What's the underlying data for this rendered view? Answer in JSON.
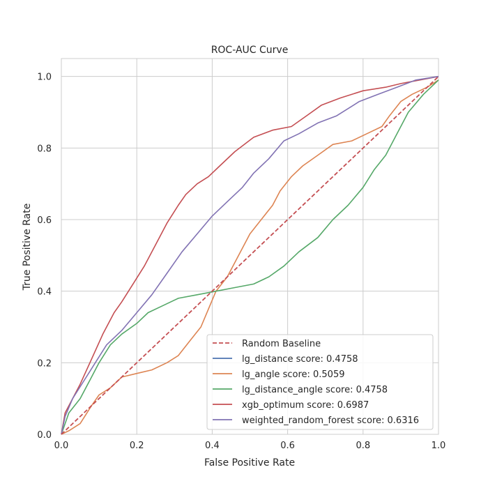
{
  "chart_data": {
    "type": "line",
    "title": "ROC-AUC Curve",
    "xlabel": "False Positive Rate",
    "ylabel": "True Positive Rate",
    "xlim": [
      0,
      1.0
    ],
    "ylim": [
      0,
      1.05
    ],
    "xticks": [
      "0.0",
      "0.2",
      "0.4",
      "0.6",
      "0.8",
      "1.0"
    ],
    "yticks": [
      "0.0",
      "0.2",
      "0.4",
      "0.6",
      "0.8",
      "1.0"
    ],
    "grid": true,
    "legend_position": "lower-right",
    "series": [
      {
        "name": "Random Baseline",
        "color": "#c44e52",
        "dashed": true,
        "points": [
          [
            0,
            0
          ],
          [
            1,
            1
          ]
        ]
      },
      {
        "name": "lg_distance  score: 0.4758",
        "color": "#4c72b0",
        "points": []
      },
      {
        "name": "lg_angle  score: 0.5059",
        "color": "#dd8452",
        "points": [
          [
            0,
            0
          ],
          [
            0.02,
            0.01
          ],
          [
            0.05,
            0.03
          ],
          [
            0.08,
            0.08
          ],
          [
            0.1,
            0.11
          ],
          [
            0.13,
            0.13
          ],
          [
            0.16,
            0.16
          ],
          [
            0.2,
            0.17
          ],
          [
            0.24,
            0.18
          ],
          [
            0.28,
            0.2
          ],
          [
            0.31,
            0.22
          ],
          [
            0.34,
            0.26
          ],
          [
            0.37,
            0.3
          ],
          [
            0.39,
            0.35
          ],
          [
            0.41,
            0.4
          ],
          [
            0.44,
            0.44
          ],
          [
            0.47,
            0.5
          ],
          [
            0.5,
            0.56
          ],
          [
            0.53,
            0.6
          ],
          [
            0.56,
            0.64
          ],
          [
            0.58,
            0.68
          ],
          [
            0.61,
            0.72
          ],
          [
            0.64,
            0.75
          ],
          [
            0.68,
            0.78
          ],
          [
            0.72,
            0.81
          ],
          [
            0.77,
            0.82
          ],
          [
            0.81,
            0.84
          ],
          [
            0.85,
            0.86
          ],
          [
            0.87,
            0.89
          ],
          [
            0.9,
            0.93
          ],
          [
            0.93,
            0.95
          ],
          [
            0.97,
            0.97
          ],
          [
            1.0,
            0.99
          ]
        ]
      },
      {
        "name": "lg_distance_angle  score: 0.4758",
        "color": "#55a868",
        "points": [
          [
            0,
            0
          ],
          [
            0.01,
            0.03
          ],
          [
            0.02,
            0.06
          ],
          [
            0.05,
            0.1
          ],
          [
            0.08,
            0.16
          ],
          [
            0.1,
            0.2
          ],
          [
            0.13,
            0.25
          ],
          [
            0.16,
            0.28
          ],
          [
            0.2,
            0.31
          ],
          [
            0.23,
            0.34
          ],
          [
            0.27,
            0.36
          ],
          [
            0.31,
            0.38
          ],
          [
            0.36,
            0.39
          ],
          [
            0.41,
            0.4
          ],
          [
            0.46,
            0.41
          ],
          [
            0.51,
            0.42
          ],
          [
            0.55,
            0.44
          ],
          [
            0.59,
            0.47
          ],
          [
            0.63,
            0.51
          ],
          [
            0.68,
            0.55
          ],
          [
            0.72,
            0.6
          ],
          [
            0.76,
            0.64
          ],
          [
            0.8,
            0.69
          ],
          [
            0.83,
            0.74
          ],
          [
            0.86,
            0.78
          ],
          [
            0.89,
            0.84
          ],
          [
            0.92,
            0.9
          ],
          [
            0.96,
            0.95
          ],
          [
            1.0,
            0.99
          ]
        ]
      },
      {
        "name": "xgb_optimum  score: 0.6987",
        "color": "#c44e52",
        "points": [
          [
            0,
            0
          ],
          [
            0.01,
            0.06
          ],
          [
            0.03,
            0.1
          ],
          [
            0.05,
            0.14
          ],
          [
            0.08,
            0.21
          ],
          [
            0.11,
            0.28
          ],
          [
            0.14,
            0.34
          ],
          [
            0.16,
            0.37
          ],
          [
            0.19,
            0.42
          ],
          [
            0.22,
            0.47
          ],
          [
            0.25,
            0.53
          ],
          [
            0.28,
            0.59
          ],
          [
            0.31,
            0.64
          ],
          [
            0.33,
            0.67
          ],
          [
            0.36,
            0.7
          ],
          [
            0.39,
            0.72
          ],
          [
            0.42,
            0.75
          ],
          [
            0.46,
            0.79
          ],
          [
            0.51,
            0.83
          ],
          [
            0.56,
            0.85
          ],
          [
            0.61,
            0.86
          ],
          [
            0.65,
            0.89
          ],
          [
            0.69,
            0.92
          ],
          [
            0.74,
            0.94
          ],
          [
            0.8,
            0.96
          ],
          [
            0.86,
            0.97
          ],
          [
            0.9,
            0.98
          ],
          [
            0.95,
            0.99
          ],
          [
            1.0,
            1.0
          ]
        ]
      },
      {
        "name": "weighted_random_forest  score: 0.6316",
        "color": "#8172b3",
        "points": [
          [
            0,
            0
          ],
          [
            0.01,
            0.05
          ],
          [
            0.03,
            0.1
          ],
          [
            0.06,
            0.15
          ],
          [
            0.09,
            0.2
          ],
          [
            0.12,
            0.25
          ],
          [
            0.16,
            0.29
          ],
          [
            0.2,
            0.34
          ],
          [
            0.24,
            0.39
          ],
          [
            0.28,
            0.45
          ],
          [
            0.32,
            0.51
          ],
          [
            0.36,
            0.56
          ],
          [
            0.4,
            0.61
          ],
          [
            0.44,
            0.65
          ],
          [
            0.48,
            0.69
          ],
          [
            0.51,
            0.73
          ],
          [
            0.55,
            0.77
          ],
          [
            0.59,
            0.82
          ],
          [
            0.63,
            0.84
          ],
          [
            0.68,
            0.87
          ],
          [
            0.73,
            0.89
          ],
          [
            0.79,
            0.93
          ],
          [
            0.84,
            0.95
          ],
          [
            0.89,
            0.97
          ],
          [
            0.94,
            0.99
          ],
          [
            1.0,
            1.0
          ]
        ]
      }
    ]
  }
}
